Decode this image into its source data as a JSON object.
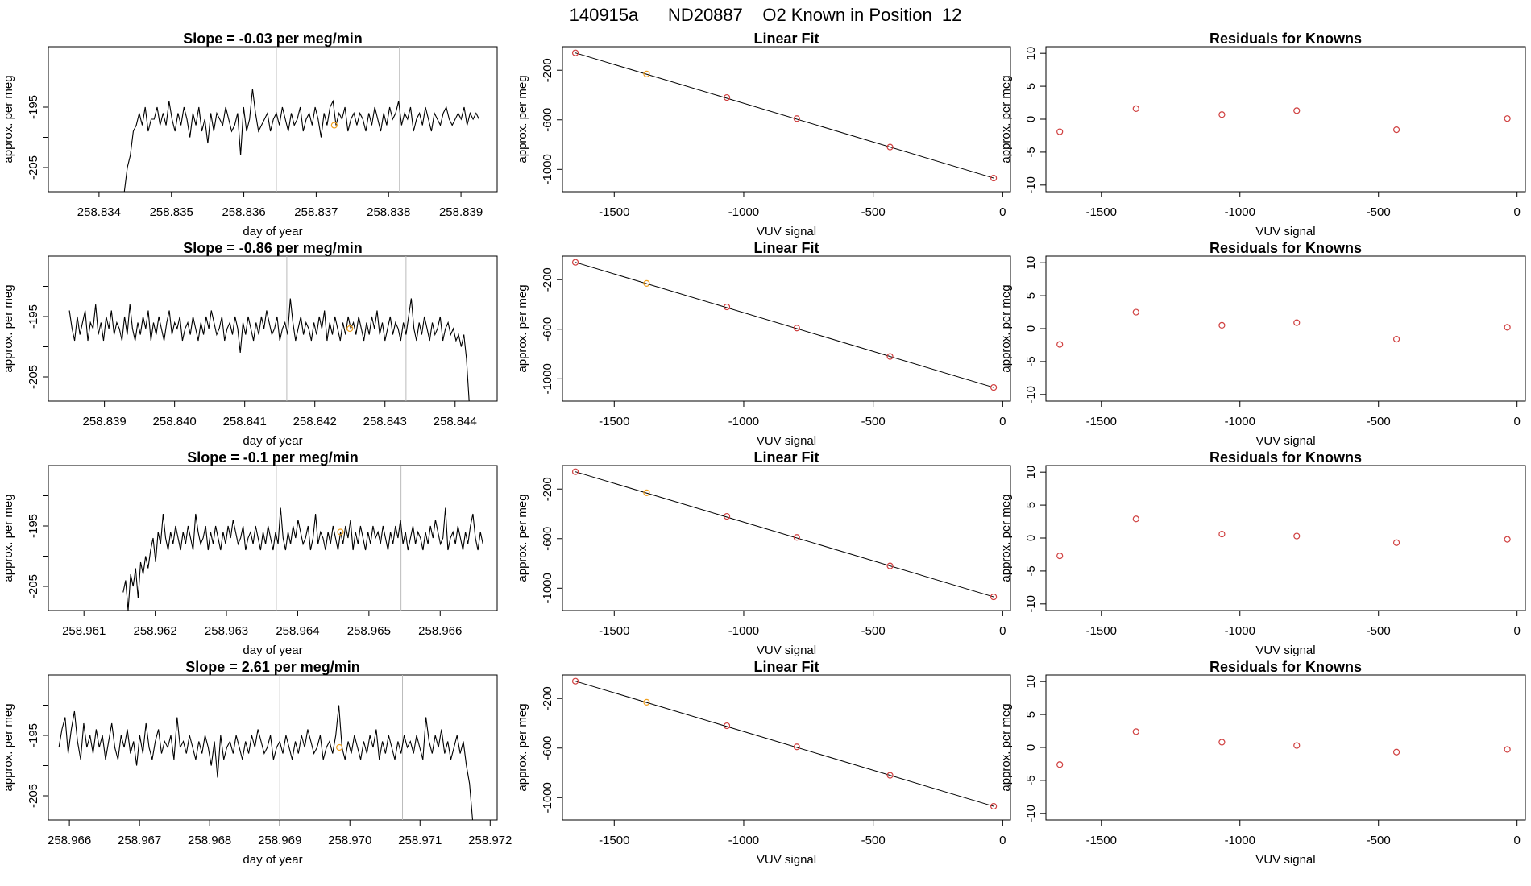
{
  "figure_title": "140915a      ND20887    O2 Known in Position  12",
  "colors": {
    "axis": "#000000",
    "trace": "#000000",
    "marker_orange": "#f0a020",
    "marker_red": "#d04040",
    "vline": "#bbbbbb"
  },
  "chart_data": [
    {
      "type": "line",
      "row": 0,
      "panel": "timeseries",
      "title": "Slope =  -0.03  per meg/min",
      "xlabel": "day of year",
      "ylabel": "approx. per meg",
      "xlim": [
        258.8333,
        258.8395
      ],
      "ylim": [
        -209,
        -185
      ],
      "xticks": [
        "258.834",
        "258.835",
        "258.836",
        "258.837",
        "258.838",
        "258.839"
      ],
      "yticks": [
        "-205",
        "-195"
      ],
      "x_start": 258.83435,
      "x_end": 258.83925,
      "series_values": [
        -209,
        -205,
        -203,
        -199,
        -198,
        -196,
        -198,
        -195,
        -199,
        -197,
        -197,
        -195,
        -198,
        -196,
        -198,
        -194,
        -197,
        -199,
        -196,
        -198,
        -195,
        -197,
        -200,
        -196,
        -198,
        -195,
        -199,
        -197,
        -201,
        -196,
        -199,
        -196,
        -197,
        -198,
        -195,
        -197,
        -199,
        -198,
        -196,
        -203,
        -195,
        -199,
        -197,
        -192,
        -196,
        -199,
        -198,
        -197,
        -196,
        -199,
        -197,
        -196,
        -198,
        -195,
        -197,
        -199,
        -196,
        -198,
        -197,
        -195,
        -199,
        -197,
        -196,
        -198,
        -195,
        -197,
        -200,
        -196,
        -198,
        -195,
        -194,
        -198,
        -196,
        -197,
        -195,
        -199,
        -197,
        -196,
        -198,
        -196,
        -197,
        -199,
        -196,
        -198,
        -195,
        -197,
        -199,
        -196,
        -198,
        -195,
        -197,
        -196,
        -194,
        -198,
        -196,
        -197,
        -195,
        -199,
        -197,
        -196,
        -198,
        -195,
        -197,
        -199,
        -196,
        -197,
        -198,
        -196,
        -195,
        -197,
        -198,
        -197,
        -196,
        -197,
        -195,
        -198,
        -196,
        -197,
        -196,
        -197
      ],
      "vlines": [
        258.83645,
        258.83815
      ],
      "highlight_point": [
        258.83725,
        -198
      ]
    },
    {
      "type": "scatter",
      "row": 0,
      "panel": "linear_fit",
      "title": "Linear Fit",
      "xlabel": "VUV signal",
      "ylabel": "approx. per meg",
      "xlim": [
        -1700,
        30
      ],
      "ylim": [
        -1180,
        -10
      ],
      "xticks": [
        -1500,
        -1000,
        -500,
        0
      ],
      "yticks": [
        -200,
        -600,
        -1000
      ],
      "points": [
        [
          -1650,
          -60
        ],
        [
          -1375,
          -230
        ],
        [
          -1065,
          -420
        ],
        [
          -795,
          -590
        ],
        [
          -435,
          -820
        ],
        [
          -35,
          -1070
        ]
      ],
      "orange_index": 1
    },
    {
      "type": "scatter",
      "row": 0,
      "panel": "residuals",
      "title": "Residuals for Knowns",
      "xlabel": "VUV signal",
      "ylabel": "approx. per meg",
      "xlim": [
        -1700,
        30
      ],
      "ylim": [
        -11,
        11
      ],
      "xticks": [
        -1500,
        -1000,
        -500,
        0
      ],
      "yticks": [
        10,
        5,
        0,
        -5,
        -10
      ],
      "points": [
        [
          -1650,
          -1.9
        ],
        [
          -1375,
          1.6
        ],
        [
          -1065,
          0.7
        ],
        [
          -795,
          1.3
        ],
        [
          -435,
          -1.6
        ],
        [
          -35,
          0.1
        ]
      ]
    },
    {
      "type": "line",
      "row": 1,
      "panel": "timeseries",
      "title": "Slope =  -0.86  per meg/min",
      "xlabel": "day of year",
      "ylabel": "approx. per meg",
      "xlim": [
        258.8382,
        258.8446
      ],
      "ylim": [
        -209,
        -185
      ],
      "xticks": [
        "258.839",
        "258.840",
        "258.841",
        "258.842",
        "258.843",
        "258.844"
      ],
      "yticks": [
        "-205",
        "-195"
      ],
      "x_start": 258.8385,
      "x_end": 258.8442,
      "series_values": [
        -194,
        -197,
        -199,
        -195,
        -198,
        -196,
        -194,
        -199,
        -196,
        -197,
        -193,
        -198,
        -196,
        -199,
        -195,
        -197,
        -194,
        -198,
        -196,
        -197,
        -199,
        -195,
        -198,
        -193,
        -197,
        -199,
        -196,
        -198,
        -195,
        -197,
        -194,
        -199,
        -196,
        -198,
        -195,
        -197,
        -199,
        -196,
        -194,
        -198,
        -196,
        -197,
        -195,
        -199,
        -197,
        -196,
        -198,
        -195,
        -197,
        -199,
        -196,
        -198,
        -195,
        -197,
        -194,
        -196,
        -198,
        -197,
        -195,
        -199,
        -197,
        -196,
        -198,
        -195,
        -197,
        -201,
        -196,
        -198,
        -195,
        -197,
        -199,
        -196,
        -198,
        -195,
        -197,
        -194,
        -196,
        -198,
        -197,
        -195,
        -199,
        -197,
        -196,
        -198,
        -192,
        -196,
        -199,
        -197,
        -195,
        -198,
        -196,
        -197,
        -199,
        -196,
        -198,
        -195,
        -197,
        -194,
        -199,
        -196,
        -198,
        -195,
        -197,
        -199,
        -196,
        -198,
        -195,
        -197,
        -196,
        -198,
        -195,
        -197,
        -199,
        -196,
        -198,
        -195,
        -197,
        -194,
        -198,
        -196,
        -199,
        -197,
        -195,
        -198,
        -196,
        -197,
        -199,
        -196,
        -198,
        -195,
        -192,
        -197,
        -199,
        -196,
        -198,
        -195,
        -197,
        -199,
        -196,
        -198,
        -197,
        -195,
        -199,
        -197,
        -196,
        -198,
        -197,
        -199,
        -198,
        -200,
        -198,
        -202,
        -209
      ],
      "vlines": [
        258.8416,
        258.8433
      ],
      "highlight_point": [
        258.8425,
        -197
      ]
    },
    {
      "type": "scatter",
      "row": 1,
      "panel": "linear_fit",
      "title": "Linear Fit",
      "xlabel": "VUV signal",
      "ylabel": "approx. per meg",
      "xlim": [
        -1700,
        30
      ],
      "ylim": [
        -1180,
        -10
      ],
      "xticks": [
        -1500,
        -1000,
        -500,
        0
      ],
      "yticks": [
        -200,
        -600,
        -1000
      ],
      "points": [
        [
          -1650,
          -60
        ],
        [
          -1375,
          -230
        ],
        [
          -1065,
          -420
        ],
        [
          -795,
          -590
        ],
        [
          -435,
          -820
        ],
        [
          -35,
          -1070
        ]
      ],
      "orange_index": 1
    },
    {
      "type": "scatter",
      "row": 1,
      "panel": "residuals",
      "title": "Residuals for Knowns",
      "xlabel": "VUV signal",
      "ylabel": "approx. per meg",
      "xlim": [
        -1700,
        30
      ],
      "ylim": [
        -11,
        11
      ],
      "xticks": [
        -1500,
        -1000,
        -500,
        0
      ],
      "yticks": [
        10,
        5,
        0,
        -5,
        -10
      ],
      "points": [
        [
          -1650,
          -2.4
        ],
        [
          -1375,
          2.5
        ],
        [
          -1065,
          0.5
        ],
        [
          -795,
          0.9
        ],
        [
          -435,
          -1.6
        ],
        [
          -35,
          0.2
        ]
      ]
    },
    {
      "type": "line",
      "row": 2,
      "panel": "timeseries",
      "title": "Slope =  -0.1  per meg/min",
      "xlabel": "day of year",
      "ylabel": "approx. per meg",
      "xlim": [
        258.9605,
        258.9668
      ],
      "ylim": [
        -209,
        -185
      ],
      "xticks": [
        "258.961",
        "258.962",
        "258.963",
        "258.964",
        "258.965",
        "258.966"
      ],
      "yticks": [
        "-205",
        "-195"
      ],
      "x_start": 258.96155,
      "x_end": 258.9666,
      "series_values": [
        -206,
        -204,
        -209,
        -203,
        -205,
        -202,
        -207,
        -201,
        -203,
        -200,
        -202,
        -199,
        -197,
        -201,
        -196,
        -198,
        -193,
        -197,
        -199,
        -196,
        -198,
        -195,
        -197,
        -199,
        -196,
        -198,
        -195,
        -197,
        -199,
        -193,
        -196,
        -198,
        -197,
        -195,
        -199,
        -196,
        -198,
        -195,
        -197,
        -199,
        -196,
        -198,
        -195,
        -197,
        -194,
        -196,
        -198,
        -197,
        -195,
        -199,
        -197,
        -196,
        -198,
        -195,
        -197,
        -199,
        -196,
        -198,
        -195,
        -197,
        -199,
        -196,
        -198,
        -192,
        -197,
        -199,
        -196,
        -198,
        -195,
        -197,
        -194,
        -196,
        -198,
        -197,
        -195,
        -199,
        -197,
        -193,
        -198,
        -196,
        -197,
        -199,
        -196,
        -198,
        -195,
        -197,
        -199,
        -196,
        -198,
        -195,
        -197,
        -194,
        -199,
        -196,
        -198,
        -195,
        -197,
        -199,
        -196,
        -198,
        -195,
        -197,
        -196,
        -198,
        -195,
        -197,
        -199,
        -196,
        -198,
        -195,
        -197,
        -194,
        -198,
        -196,
        -199,
        -197,
        -195,
        -198,
        -196,
        -197,
        -199,
        -196,
        -198,
        -195,
        -197,
        -194,
        -196,
        -198,
        -197,
        -192,
        -199,
        -197,
        -196,
        -198,
        -195,
        -197,
        -199,
        -196,
        -198,
        -195,
        -193,
        -197,
        -199,
        -196,
        -198
      ],
      "vlines": [
        258.9637,
        258.96545
      ],
      "highlight_point": [
        258.9646,
        -196
      ]
    },
    {
      "type": "scatter",
      "row": 2,
      "panel": "linear_fit",
      "title": "Linear Fit",
      "xlabel": "VUV signal",
      "ylabel": "approx. per meg",
      "xlim": [
        -1700,
        30
      ],
      "ylim": [
        -1180,
        -10
      ],
      "xticks": [
        -1500,
        -1000,
        -500,
        0
      ],
      "yticks": [
        -200,
        -600,
        -1000
      ],
      "points": [
        [
          -1650,
          -60
        ],
        [
          -1375,
          -230
        ],
        [
          -1065,
          -420
        ],
        [
          -795,
          -590
        ],
        [
          -435,
          -820
        ],
        [
          -35,
          -1070
        ]
      ],
      "orange_index": 1
    },
    {
      "type": "scatter",
      "row": 2,
      "panel": "residuals",
      "title": "Residuals for Knowns",
      "xlabel": "VUV signal",
      "ylabel": "approx. per meg",
      "xlim": [
        -1700,
        30
      ],
      "ylim": [
        -11,
        11
      ],
      "xticks": [
        -1500,
        -1000,
        -500,
        0
      ],
      "yticks": [
        10,
        5,
        0,
        -5,
        -10
      ],
      "points": [
        [
          -1650,
          -2.7
        ],
        [
          -1375,
          2.9
        ],
        [
          -1065,
          0.6
        ],
        [
          -795,
          0.3
        ],
        [
          -435,
          -0.7
        ],
        [
          -35,
          -0.2
        ]
      ]
    },
    {
      "type": "line",
      "row": 3,
      "panel": "timeseries",
      "title": "Slope =  2.61  per meg/min",
      "xlabel": "day of year",
      "ylabel": "approx. per meg",
      "xlim": [
        258.9657,
        258.9721
      ],
      "ylim": [
        -209,
        -185
      ],
      "xticks": [
        "258.966",
        "258.967",
        "258.968",
        "258.969",
        "258.970",
        "258.971",
        "258.972"
      ],
      "yticks": [
        "-205",
        "-195"
      ],
      "x_start": 258.96585,
      "x_end": 258.97175,
      "series_values": [
        -197,
        -194,
        -192,
        -198,
        -194,
        -191,
        -196,
        -199,
        -193,
        -197,
        -195,
        -198,
        -194,
        -197,
        -195,
        -199,
        -196,
        -193,
        -197,
        -199,
        -195,
        -197,
        -194,
        -198,
        -196,
        -200,
        -195,
        -198,
        -193,
        -197,
        -199,
        -196,
        -194,
        -198,
        -196,
        -197,
        -195,
        -199,
        -192,
        -197,
        -196,
        -198,
        -195,
        -197,
        -199,
        -196,
        -198,
        -195,
        -197,
        -200,
        -196,
        -202,
        -195,
        -199,
        -197,
        -196,
        -198,
        -195,
        -197,
        -199,
        -196,
        -198,
        -195,
        -197,
        -194,
        -196,
        -198,
        -197,
        -195,
        -199,
        -197,
        -196,
        -198,
        -195,
        -197,
        -199,
        -196,
        -198,
        -195,
        -197,
        -194,
        -196,
        -198,
        -197,
        -195,
        -199,
        -197,
        -196,
        -198,
        -195,
        -190,
        -197,
        -199,
        -196,
        -198,
        -195,
        -197,
        -199,
        -196,
        -198,
        -195,
        -197,
        -194,
        -199,
        -196,
        -198,
        -195,
        -197,
        -199,
        -196,
        -198,
        -195,
        -197,
        -196,
        -198,
        -195,
        -197,
        -199,
        -192,
        -196,
        -198,
        -195,
        -197,
        -194,
        -198,
        -196,
        -199,
        -197,
        -195,
        -198,
        -196,
        -200,
        -203,
        -209
      ],
      "vlines": [
        258.969,
        258.97075
      ],
      "highlight_point": [
        258.96985,
        -197
      ]
    },
    {
      "type": "scatter",
      "row": 3,
      "panel": "linear_fit",
      "title": "Linear Fit",
      "xlabel": "VUV signal",
      "ylabel": "approx. per meg",
      "xlim": [
        -1700,
        30
      ],
      "ylim": [
        -1180,
        -10
      ],
      "xticks": [
        -1500,
        -1000,
        -500,
        0
      ],
      "yticks": [
        -200,
        -600,
        -1000
      ],
      "points": [
        [
          -1650,
          -60
        ],
        [
          -1375,
          -230
        ],
        [
          -1065,
          -420
        ],
        [
          -795,
          -590
        ],
        [
          -435,
          -820
        ],
        [
          -35,
          -1070
        ]
      ],
      "orange_index": 1
    },
    {
      "type": "scatter",
      "row": 3,
      "panel": "residuals",
      "title": "Residuals for Knowns",
      "xlabel": "VUV signal",
      "ylabel": "approx. per meg",
      "xlim": [
        -1700,
        30
      ],
      "ylim": [
        -11,
        11
      ],
      "xticks": [
        -1500,
        -1000,
        -500,
        0
      ],
      "yticks": [
        10,
        5,
        0,
        -5,
        -10
      ],
      "points": [
        [
          -1650,
          -2.6
        ],
        [
          -1375,
          2.4
        ],
        [
          -1065,
          0.8
        ],
        [
          -795,
          0.3
        ],
        [
          -435,
          -0.7
        ],
        [
          -35,
          -0.3
        ]
      ]
    }
  ]
}
